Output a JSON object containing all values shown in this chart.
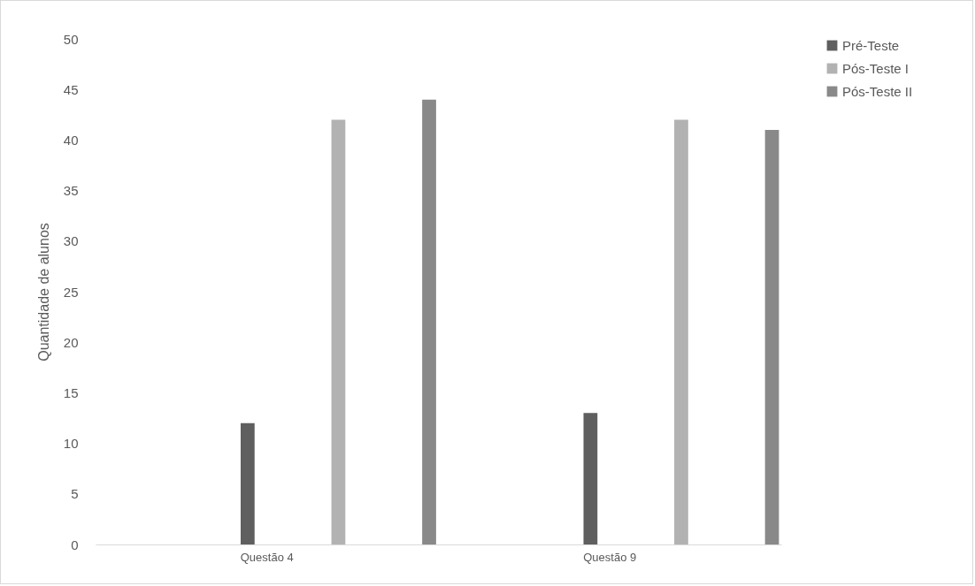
{
  "chart_data": {
    "type": "bar",
    "ylabel": "Quantidade de alunos",
    "categories": [
      "Questão 4",
      "Questão 9"
    ],
    "series": [
      {
        "name": "Pré-Teste",
        "color": "#5f5f5f",
        "values": [
          12,
          13
        ]
      },
      {
        "name": "Pós-Teste I",
        "color": "#b2b2b2",
        "values": [
          42,
          42
        ]
      },
      {
        "name": "Pós-Teste II",
        "color": "#898989",
        "values": [
          44,
          41
        ]
      }
    ],
    "ylim": [
      0,
      50
    ],
    "yticks": [
      0,
      5,
      10,
      15,
      20,
      25,
      30,
      35,
      40,
      45,
      50
    ],
    "grid": false,
    "legend": "right"
  }
}
